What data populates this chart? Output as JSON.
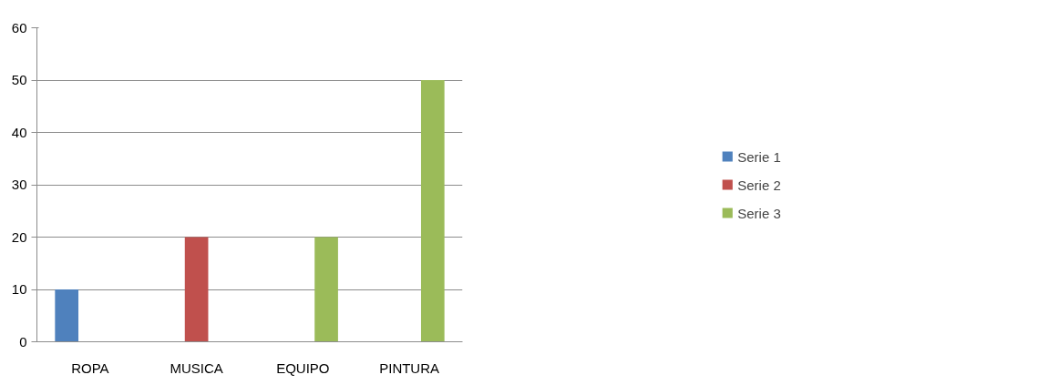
{
  "chart_data": {
    "type": "bar",
    "categories": [
      "ROPA",
      "MUSICA",
      "EQUIPO",
      "PINTURA"
    ],
    "series": [
      {
        "name": "Serie 1",
        "color": "#4f81bd",
        "values": [
          10,
          null,
          null,
          null
        ]
      },
      {
        "name": "Serie 2",
        "color": "#c0504d",
        "values": [
          null,
          20,
          null,
          null
        ]
      },
      {
        "name": "Serie 3",
        "color": "#9bbb59",
        "values": [
          null,
          null,
          20,
          50
        ]
      }
    ],
    "ylim": [
      0,
      60
    ],
    "yticks": [
      0,
      10,
      20,
      30,
      40,
      50,
      60
    ],
    "grid": "y",
    "legend": "right"
  }
}
